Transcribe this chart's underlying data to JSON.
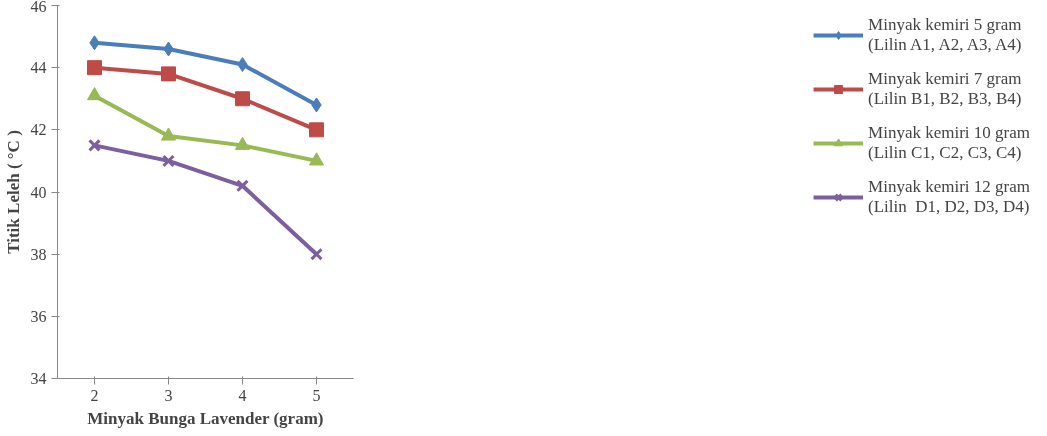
{
  "chart_data": {
    "type": "line",
    "xlabel": "Minyak Bunga Lavender (gram)",
    "ylabel": "Titik Leleh ( °C )",
    "categories": [
      "2",
      "3",
      "4",
      "5"
    ],
    "ylim": [
      34,
      46
    ],
    "yticks": [
      34,
      36,
      38,
      40,
      42,
      44,
      46
    ],
    "grid": false,
    "legend": "right",
    "line_style": "solid",
    "series": [
      {
        "name": "Minyak kemiri 5 gram\n(Lilin A1, A2, A3, A4)",
        "color": "#4a7ebb",
        "marker": "diamond",
        "values": [
          44.8,
          44.6,
          44.1,
          42.8
        ]
      },
      {
        "name": "Minyak kemiri 7 gram\n(Lilin B1, B2, B3, B4)",
        "color": "#be4b48",
        "marker": "square",
        "values": [
          44.0,
          43.8,
          43.0,
          42.0
        ]
      },
      {
        "name": "Minyak kemiri 10 gram\n(Lilin C1, C2, C3, C4)",
        "color": "#98b954",
        "marker": "triangle",
        "values": [
          43.1,
          41.8,
          41.5,
          41.0
        ]
      },
      {
        "name": "Minyak kemiri 12 gram\n(Lilin  D1, D2, D3, D4)",
        "color": "#7d5fa0",
        "marker": "cross",
        "values": [
          41.5,
          41.0,
          40.2,
          38.0
        ]
      }
    ]
  }
}
